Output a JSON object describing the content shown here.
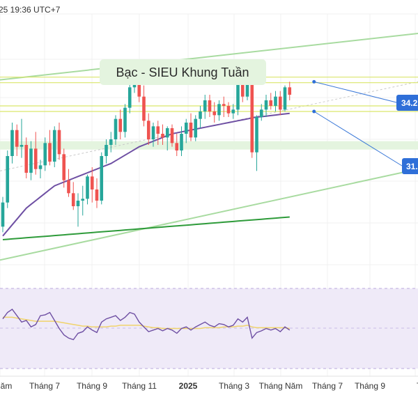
{
  "header": {
    "timestamp": "25 19:36 UTC+7"
  },
  "annotation": {
    "title": "Bạc - SIEU Khung Tuần"
  },
  "price_labels": {
    "upper": "34.2",
    "lower": "31."
  },
  "x_ticks": [
    "Năm",
    "Tháng 7",
    "Tháng 9",
    "Tháng 11",
    "2025",
    "Tháng 3",
    "Tháng Năm",
    "Tháng 7",
    "Tháng 9",
    "Thán"
  ],
  "colors": {
    "up": "#26a69a",
    "down": "#ef5350",
    "ma_fast": "#6e4fa3",
    "ma_slow": "#2e9b3a",
    "channel": "#a8dba0",
    "zone": "#e4f4df",
    "hline": "#d9e66a",
    "rsi": "#6e4fa3",
    "rsi_signal": "#f0d36b",
    "rsi_band": "#efeaf8",
    "label_bg": "#2f6fd8",
    "axis_text": "#333333"
  },
  "chart_data": {
    "type": "candlestick",
    "title": "Bạc - SIEU Khung Tuần",
    "xlabel": "",
    "ylabel": "",
    "ylim": [
      23.0,
      36.5
    ],
    "grid": true,
    "x_tick_labels": [
      "Năm",
      "Tháng 7",
      "Tháng 9",
      "Tháng 11",
      "2025",
      "Tháng 3",
      "Tháng Năm",
      "Tháng 7",
      "Tháng 9",
      "Thán"
    ],
    "candles": [
      {
        "o": 25.8,
        "h": 27.4,
        "l": 25.5,
        "c": 27.1
      },
      {
        "o": 27.1,
        "h": 29.9,
        "l": 26.8,
        "c": 29.6
      },
      {
        "o": 29.6,
        "h": 31.4,
        "l": 29.2,
        "c": 31.0
      },
      {
        "o": 31.0,
        "h": 31.3,
        "l": 29.6,
        "c": 30.1
      },
      {
        "o": 30.1,
        "h": 31.6,
        "l": 29.5,
        "c": 30.2
      },
      {
        "o": 30.2,
        "h": 30.6,
        "l": 28.4,
        "c": 28.7
      },
      {
        "o": 28.7,
        "h": 30.4,
        "l": 28.3,
        "c": 30.0
      },
      {
        "o": 30.0,
        "h": 30.9,
        "l": 28.6,
        "c": 28.9
      },
      {
        "o": 28.9,
        "h": 29.4,
        "l": 28.4,
        "c": 29.1
      },
      {
        "o": 29.1,
        "h": 30.6,
        "l": 28.8,
        "c": 30.3
      },
      {
        "o": 30.3,
        "h": 31.0,
        "l": 29.1,
        "c": 29.3
      },
      {
        "o": 29.3,
        "h": 31.2,
        "l": 29.0,
        "c": 31.0
      },
      {
        "o": 31.0,
        "h": 31.4,
        "l": 29.4,
        "c": 29.7
      },
      {
        "o": 29.7,
        "h": 30.0,
        "l": 27.9,
        "c": 28.3
      },
      {
        "o": 28.3,
        "h": 28.9,
        "l": 27.4,
        "c": 27.6
      },
      {
        "o": 27.6,
        "h": 28.2,
        "l": 26.7,
        "c": 26.9
      },
      {
        "o": 26.9,
        "h": 27.6,
        "l": 25.8,
        "c": 27.2
      },
      {
        "o": 27.2,
        "h": 28.0,
        "l": 26.4,
        "c": 27.3
      },
      {
        "o": 27.3,
        "h": 28.6,
        "l": 27.0,
        "c": 28.5
      },
      {
        "o": 28.5,
        "h": 29.0,
        "l": 27.1,
        "c": 27.8
      },
      {
        "o": 27.8,
        "h": 28.4,
        "l": 26.8,
        "c": 27.2
      },
      {
        "o": 27.2,
        "h": 29.8,
        "l": 27.0,
        "c": 29.6
      },
      {
        "o": 29.6,
        "h": 30.5,
        "l": 29.2,
        "c": 30.2
      },
      {
        "o": 30.2,
        "h": 30.9,
        "l": 29.8,
        "c": 30.5
      },
      {
        "o": 30.5,
        "h": 31.8,
        "l": 30.2,
        "c": 31.6
      },
      {
        "o": 31.6,
        "h": 32.1,
        "l": 30.5,
        "c": 30.9
      },
      {
        "o": 30.9,
        "h": 32.4,
        "l": 30.6,
        "c": 32.2
      },
      {
        "o": 32.2,
        "h": 33.8,
        "l": 31.9,
        "c": 33.3
      },
      {
        "o": 33.3,
        "h": 34.7,
        "l": 33.0,
        "c": 33.6
      },
      {
        "o": 33.6,
        "h": 34.4,
        "l": 32.5,
        "c": 32.8
      },
      {
        "o": 32.8,
        "h": 33.4,
        "l": 31.2,
        "c": 31.5
      },
      {
        "o": 31.5,
        "h": 31.9,
        "l": 30.2,
        "c": 30.5
      },
      {
        "o": 30.5,
        "h": 31.4,
        "l": 30.1,
        "c": 31.2
      },
      {
        "o": 31.2,
        "h": 31.5,
        "l": 30.2,
        "c": 30.8
      },
      {
        "o": 30.8,
        "h": 31.3,
        "l": 30.2,
        "c": 30.6
      },
      {
        "o": 30.6,
        "h": 31.2,
        "l": 29.9,
        "c": 31.1
      },
      {
        "o": 31.1,
        "h": 31.3,
        "l": 30.1,
        "c": 30.3
      },
      {
        "o": 30.3,
        "h": 30.8,
        "l": 29.6,
        "c": 29.9
      },
      {
        "o": 29.9,
        "h": 31.2,
        "l": 29.6,
        "c": 30.8
      },
      {
        "o": 30.8,
        "h": 31.6,
        "l": 30.3,
        "c": 31.4
      },
      {
        "o": 31.4,
        "h": 31.9,
        "l": 30.4,
        "c": 30.6
      },
      {
        "o": 30.6,
        "h": 31.8,
        "l": 30.4,
        "c": 31.6
      },
      {
        "o": 31.6,
        "h": 32.3,
        "l": 31.1,
        "c": 32.0
      },
      {
        "o": 32.0,
        "h": 32.9,
        "l": 31.6,
        "c": 32.6
      },
      {
        "o": 32.6,
        "h": 32.9,
        "l": 31.7,
        "c": 32.0
      },
      {
        "o": 32.0,
        "h": 32.5,
        "l": 31.4,
        "c": 31.8
      },
      {
        "o": 31.8,
        "h": 32.6,
        "l": 31.5,
        "c": 32.4
      },
      {
        "o": 32.4,
        "h": 32.8,
        "l": 31.7,
        "c": 32.3
      },
      {
        "o": 32.3,
        "h": 32.5,
        "l": 31.7,
        "c": 31.9
      },
      {
        "o": 31.9,
        "h": 32.4,
        "l": 31.6,
        "c": 32.1
      },
      {
        "o": 32.1,
        "h": 34.1,
        "l": 31.8,
        "c": 33.8
      },
      {
        "o": 33.8,
        "h": 34.2,
        "l": 32.5,
        "c": 32.8
      },
      {
        "o": 32.8,
        "h": 34.8,
        "l": 32.6,
        "c": 34.2
      },
      {
        "o": 34.2,
        "h": 34.8,
        "l": 29.5,
        "c": 29.8
      },
      {
        "o": 29.8,
        "h": 31.8,
        "l": 28.8,
        "c": 31.7
      },
      {
        "o": 31.7,
        "h": 32.4,
        "l": 31.5,
        "c": 32.1
      },
      {
        "o": 32.1,
        "h": 32.9,
        "l": 31.7,
        "c": 32.6
      },
      {
        "o": 32.6,
        "h": 33.0,
        "l": 32.1,
        "c": 32.3
      },
      {
        "o": 32.3,
        "h": 33.1,
        "l": 32.0,
        "c": 32.8
      },
      {
        "o": 32.8,
        "h": 33.1,
        "l": 31.8,
        "c": 32.1
      },
      {
        "o": 32.1,
        "h": 33.4,
        "l": 32.0,
        "c": 33.3
      },
      {
        "o": 33.3,
        "h": 33.6,
        "l": 32.6,
        "c": 32.9
      }
    ],
    "ma_fast": [
      25.3,
      25.6,
      25.9,
      26.2,
      26.5,
      26.8,
      27.0,
      27.2,
      27.4,
      27.6,
      27.8,
      28.0,
      28.1,
      28.2,
      28.3,
      28.4,
      28.5,
      28.6,
      28.7,
      28.8,
      28.9,
      29.0,
      29.1,
      29.2,
      29.35,
      29.5,
      29.65,
      29.8,
      29.95,
      30.1,
      30.2,
      30.3,
      30.4,
      30.5,
      30.6,
      30.7,
      30.8,
      30.85,
      30.9,
      30.95,
      31.0,
      31.05,
      31.1,
      31.15,
      31.2,
      31.25,
      31.3,
      31.35,
      31.4,
      31.45,
      31.5,
      31.55,
      31.6,
      31.65,
      31.7,
      31.72,
      31.75,
      31.78,
      31.81,
      31.84,
      31.87,
      31.9
    ],
    "ma_slow": [
      25.1,
      25.12,
      25.14,
      25.16,
      25.18,
      25.2,
      25.22,
      25.24,
      25.26,
      25.28,
      25.3,
      25.32,
      25.34,
      25.36,
      25.38,
      25.4,
      25.42,
      25.44,
      25.46,
      25.48,
      25.5,
      25.52,
      25.54,
      25.56,
      25.58,
      25.6,
      25.62,
      25.64,
      25.66,
      25.68,
      25.7,
      25.72,
      25.74,
      25.76,
      25.78,
      25.8,
      25.82,
      25.84,
      25.86,
      25.88,
      25.9,
      25.92,
      25.94,
      25.96,
      25.98,
      26.0,
      26.02,
      26.04,
      26.06,
      26.08,
      26.1,
      26.12,
      26.14,
      26.16,
      26.18,
      26.2,
      26.22,
      26.24,
      26.26,
      26.28,
      26.3,
      26.32
    ],
    "horizontal_levels": [
      33.85,
      33.55,
      32.3,
      32.0
    ],
    "support_zone": [
      30.4,
      29.95
    ],
    "rsi": [
      62,
      70,
      74,
      66,
      58,
      60,
      52,
      55,
      66,
      67,
      70,
      60,
      50,
      42,
      38,
      36,
      44,
      46,
      52,
      48,
      45,
      58,
      62,
      64,
      66,
      60,
      64,
      70,
      68,
      58,
      52,
      46,
      48,
      50,
      47,
      50,
      48,
      44,
      50,
      52,
      48,
      52,
      55,
      58,
      54,
      52,
      56,
      55,
      52,
      54,
      62,
      58,
      64,
      38,
      45,
      47,
      50,
      48,
      50,
      46,
      52,
      48
    ],
    "rsi_signal": [
      64,
      64,
      64,
      63,
      62,
      61,
      60,
      59,
      59,
      59,
      59,
      59,
      58,
      57,
      56,
      55,
      54,
      53,
      53,
      52,
      52,
      52,
      52,
      53,
      53,
      54,
      54,
      54,
      54,
      54,
      53,
      52,
      51,
      51,
      50,
      50,
      50,
      50,
      50,
      50,
      50,
      50,
      50,
      51,
      51,
      51,
      51,
      52,
      52,
      52,
      53,
      53,
      54,
      52,
      51,
      51,
      51,
      51,
      51,
      51,
      51,
      50
    ]
  }
}
